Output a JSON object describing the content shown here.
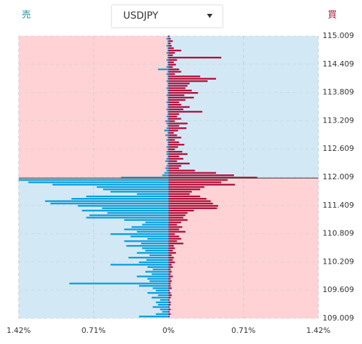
{
  "chart_data": {
    "type": "orderbook",
    "title": "USDJPY",
    "prices": [
      115.0,
      114.95,
      114.9,
      114.85,
      114.8,
      114.75,
      114.7,
      114.65,
      114.6,
      114.55,
      114.5,
      114.45,
      114.4,
      114.35,
      114.3,
      114.25,
      114.2,
      114.15,
      114.1,
      114.05,
      114.0,
      113.95,
      113.9,
      113.85,
      113.8,
      113.75,
      113.7,
      113.65,
      113.6,
      113.55,
      113.5,
      113.45,
      113.4,
      113.35,
      113.3,
      113.25,
      113.2,
      113.15,
      113.1,
      113.05,
      113.0,
      112.95,
      112.9,
      112.85,
      112.8,
      112.75,
      112.7,
      112.65,
      112.6,
      112.55,
      112.5,
      112.45,
      112.4,
      112.35,
      112.3,
      112.25,
      112.2,
      112.15,
      112.1,
      112.05,
      112.0,
      111.95,
      111.9,
      111.85,
      111.8,
      111.75,
      111.7,
      111.65,
      111.6,
      111.55,
      111.5,
      111.45,
      111.4,
      111.35,
      111.3,
      111.25,
      111.2,
      111.15,
      111.1,
      111.05,
      111.0,
      110.95,
      110.9,
      110.85,
      110.8,
      110.75,
      110.7,
      110.65,
      110.6,
      110.55,
      110.5,
      110.45,
      110.4,
      110.35,
      110.3,
      110.25,
      110.2,
      110.15,
      110.1,
      110.05,
      110.0,
      109.95,
      109.9,
      109.85,
      109.8,
      109.75,
      109.7,
      109.65,
      109.6,
      109.55,
      109.5,
      109.45,
      109.4,
      109.35,
      109.3,
      109.25,
      109.2,
      109.15,
      109.1,
      109.05
    ],
    "series": [
      {
        "name": "売",
        "color": "#0aa0dc",
        "values": [
          -0.01,
          -0.02,
          -0.01,
          -0.01,
          -0.02,
          -0.01,
          -0.01,
          -0.02,
          -0.01,
          -0.01,
          -0.02,
          -0.01,
          -0.01,
          -0.02,
          -0.1,
          -0.01,
          -0.02,
          -0.01,
          -0.01,
          -0.02,
          -0.01,
          -0.01,
          -0.02,
          -0.01,
          -0.01,
          -0.02,
          -0.01,
          -0.01,
          -0.02,
          -0.01,
          -0.01,
          -0.02,
          -0.01,
          -0.01,
          -0.02,
          -0.01,
          -0.03,
          -0.02,
          -0.01,
          -0.02,
          -0.04,
          -0.01,
          -0.03,
          -0.01,
          -0.02,
          -0.01,
          -0.01,
          -0.02,
          -0.01,
          -0.02,
          -0.02,
          -0.01,
          -0.02,
          -0.03,
          -0.01,
          -0.02,
          -0.03,
          -0.02,
          -0.04,
          -0.06,
          -0.45,
          -1.42,
          -1.33,
          -1.1,
          -0.68,
          -0.62,
          -0.55,
          -0.3,
          -0.78,
          -0.92,
          -1.17,
          -1.12,
          -0.86,
          -0.63,
          -0.82,
          -0.58,
          -0.75,
          -0.78,
          -0.42,
          -0.22,
          -0.25,
          -0.35,
          -0.42,
          -0.3,
          -0.55,
          -0.36,
          -0.2,
          -0.42,
          -0.26,
          -0.4,
          -0.25,
          -0.22,
          -0.3,
          -0.18,
          -0.38,
          -0.21,
          -0.28,
          -0.55,
          -0.2,
          -0.15,
          -0.22,
          -0.16,
          -0.3,
          -0.2,
          -0.18,
          -0.94,
          -0.28,
          -0.15,
          -0.12,
          -0.2,
          -0.1,
          -0.16,
          -0.08,
          -0.12,
          -0.1,
          -0.15,
          -0.08,
          -0.06,
          -0.12,
          -0.28
        ]
      },
      {
        "name": "買",
        "color": "#b0103a",
        "values": [
          0.01,
          0.02,
          0.04,
          0.02,
          0.03,
          0.05,
          0.12,
          0.06,
          0.04,
          0.5,
          0.08,
          0.05,
          0.07,
          0.04,
          0.1,
          0.12,
          0.06,
          0.3,
          0.45,
          0.37,
          0.2,
          0.18,
          0.16,
          0.22,
          0.28,
          0.15,
          0.24,
          0.16,
          0.1,
          0.12,
          0.2,
          0.14,
          0.32,
          0.1,
          0.08,
          0.12,
          0.06,
          0.18,
          0.1,
          0.17,
          0.09,
          0.05,
          0.08,
          0.12,
          0.06,
          0.1,
          0.15,
          0.09,
          0.06,
          0.13,
          0.18,
          0.1,
          0.14,
          0.08,
          0.2,
          0.12,
          0.1,
          0.25,
          0.45,
          0.62,
          0.84,
          0.56,
          0.5,
          0.63,
          0.34,
          0.3,
          0.22,
          0.2,
          0.3,
          0.36,
          0.4,
          0.42,
          0.47,
          0.46,
          0.24,
          0.18,
          0.16,
          0.14,
          0.18,
          0.12,
          0.08,
          0.13,
          0.1,
          0.16,
          0.06,
          0.1,
          0.12,
          0.08,
          0.14,
          0.05,
          0.06,
          0.04,
          0.07,
          0.03,
          0.05,
          0.04,
          0.06,
          0.03,
          0.04,
          0.02,
          0.03,
          0.02,
          0.04,
          0.02,
          0.03,
          0.02,
          0.02,
          0.03,
          0.01,
          0.02,
          0.03,
          0.02,
          0.01,
          0.02,
          0.02,
          0.01,
          0.02,
          0.01,
          0.02,
          0.01
        ]
      }
    ],
    "current_price": 111.99,
    "xlim": [
      -1.42,
      1.42
    ],
    "xticks": [
      {
        "value": -1.42,
        "label": "1.42%"
      },
      {
        "value": -0.71,
        "label": "0.71%"
      },
      {
        "value": 0,
        "label": "0%"
      },
      {
        "value": 0.71,
        "label": "0.71%"
      },
      {
        "value": 1.42,
        "label": "1.42%"
      }
    ],
    "ylim": [
      109.009,
      115.009
    ],
    "yticks": [
      115.009,
      114.409,
      113.809,
      113.209,
      112.609,
      112.009,
      111.409,
      110.809,
      110.209,
      109.609,
      109.009
    ],
    "grid": true
  }
}
